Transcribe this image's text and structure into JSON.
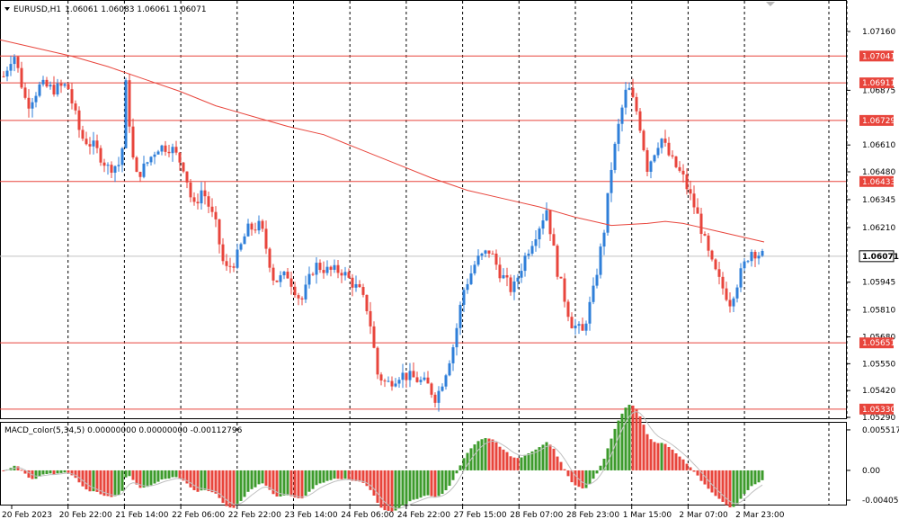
{
  "header": {
    "symbol": "EURUSD,H1",
    "ohlc": "1.06061 1.06083 1.06061 1.06071"
  },
  "macd_header": "MACD_color(5,34,5) 0.00000000 0.00000000 -0.00112796",
  "chart_data": {
    "type": "candlestick",
    "symbol": "EURUSD",
    "timeframe": "H1",
    "price_axis": {
      "range": [
        1.0529,
        1.0716
      ],
      "ticks": [
        1.0716,
        1.06875,
        1.0661,
        1.0648,
        1.06345,
        1.0621,
        1.05945,
        1.0581,
        1.0568,
        1.0555,
        1.0542,
        1.0529
      ],
      "tick_labels": [
        "1.07160",
        "1.06875",
        "1.06610",
        "1.06480",
        "1.06345",
        "1.06210",
        "1.05945",
        "1.05810",
        "1.05680",
        "1.05550",
        "1.05420",
        "1.05290"
      ]
    },
    "current_price": {
      "value": 1.06071,
      "label": "1.06071"
    },
    "horizontal_levels": [
      {
        "value": 1.07041,
        "label": "1.07041"
      },
      {
        "value": 1.06911,
        "label": "1.06911"
      },
      {
        "value": 1.06729,
        "label": "1.06729"
      },
      {
        "value": 1.06433,
        "label": "1.06433"
      },
      {
        "value": 1.05651,
        "label": "1.05651"
      },
      {
        "value": 1.0533,
        "label": "1.05330"
      }
    ],
    "time_labels": [
      "20 Feb 2023",
      "20 Feb 22:00",
      "21 Feb 14:00",
      "22 Feb 06:00",
      "22 Feb 22:00",
      "23 Feb 14:00",
      "24 Feb 06:00",
      "24 Feb 22:00",
      "27 Feb 15:00",
      "28 Feb 07:00",
      "28 Feb 23:00",
      "1 Mar 15:00",
      "2 Mar 07:00",
      "2 Mar 23:00"
    ],
    "moving_average": {
      "color": "#e8453c",
      "points": [
        [
          0,
          1.0712
        ],
        [
          40,
          1.0708
        ],
        [
          80,
          1.0704
        ],
        [
          120,
          1.0699
        ],
        [
          160,
          1.0693
        ],
        [
          200,
          1.0687
        ],
        [
          240,
          1.068
        ],
        [
          280,
          1.0675
        ],
        [
          320,
          1.067
        ],
        [
          360,
          1.0666
        ],
        [
          400,
          1.0659
        ],
        [
          440,
          1.0652
        ],
        [
          480,
          1.0645
        ],
        [
          520,
          1.0639
        ],
        [
          560,
          1.0635
        ],
        [
          600,
          1.0631
        ],
        [
          640,
          1.0626
        ],
        [
          680,
          1.0622
        ],
        [
          720,
          1.0623
        ],
        [
          740,
          1.0624
        ],
        [
          760,
          1.0623
        ],
        [
          790,
          1.062
        ],
        [
          820,
          1.0617
        ],
        [
          850,
          1.0614
        ]
      ]
    },
    "price_path": [
      [
        0,
        1.069
      ],
      [
        15,
        1.0706
      ],
      [
        30,
        1.068
      ],
      [
        45,
        1.069
      ],
      [
        60,
        1.0688
      ],
      [
        75,
        1.069
      ],
      [
        90,
        1.0665
      ],
      [
        105,
        1.066
      ],
      [
        120,
        1.065
      ],
      [
        135,
        1.0652
      ],
      [
        140,
        1.069
      ],
      [
        150,
        1.0645
      ],
      [
        160,
        1.065
      ],
      [
        175,
        1.066
      ],
      [
        190,
        1.066
      ],
      [
        205,
        1.065
      ],
      [
        215,
        1.063
      ],
      [
        225,
        1.064
      ],
      [
        240,
        1.0622
      ],
      [
        250,
        1.06
      ],
      [
        262,
        1.0605
      ],
      [
        275,
        1.062
      ],
      [
        290,
        1.0622
      ],
      [
        305,
        1.0595
      ],
      [
        320,
        1.0598
      ],
      [
        335,
        1.0585
      ],
      [
        350,
        1.0603
      ],
      [
        365,
        1.06
      ],
      [
        380,
        1.06
      ],
      [
        400,
        1.059
      ],
      [
        410,
        1.058
      ],
      [
        420,
        1.055
      ],
      [
        430,
        1.0545
      ],
      [
        445,
        1.055
      ],
      [
        460,
        1.0548
      ],
      [
        475,
        1.0545
      ],
      [
        485,
        1.0538
      ],
      [
        495,
        1.055
      ],
      [
        505,
        1.0565
      ],
      [
        515,
        1.059
      ],
      [
        530,
        1.0605
      ],
      [
        545,
        1.061
      ],
      [
        555,
        1.06
      ],
      [
        570,
        1.059
      ],
      [
        585,
        1.0608
      ],
      [
        600,
        1.0622
      ],
      [
        608,
        1.063
      ],
      [
        620,
        1.06
      ],
      [
        635,
        1.0575
      ],
      [
        648,
        1.057
      ],
      [
        660,
        1.059
      ],
      [
        672,
        1.062
      ],
      [
        680,
        1.065
      ],
      [
        690,
        1.0675
      ],
      [
        698,
        1.069
      ],
      [
        710,
        1.0675
      ],
      [
        720,
        1.065
      ],
      [
        735,
        1.0665
      ],
      [
        745,
        1.0655
      ],
      [
        760,
        1.0645
      ],
      [
        775,
        1.0628
      ],
      [
        790,
        1.0605
      ],
      [
        800,
        1.0595
      ],
      [
        812,
        1.0585
      ],
      [
        825,
        1.06
      ],
      [
        835,
        1.061
      ],
      [
        850,
        1.0607
      ]
    ],
    "macd": {
      "range": [
        -0.00405,
        0.00551
      ],
      "tick_labels": [
        "0.0055176",
        "0.00",
        "-0.0040550"
      ],
      "ticks": [
        0.0055176,
        0.0,
        -0.004055
      ]
    }
  }
}
